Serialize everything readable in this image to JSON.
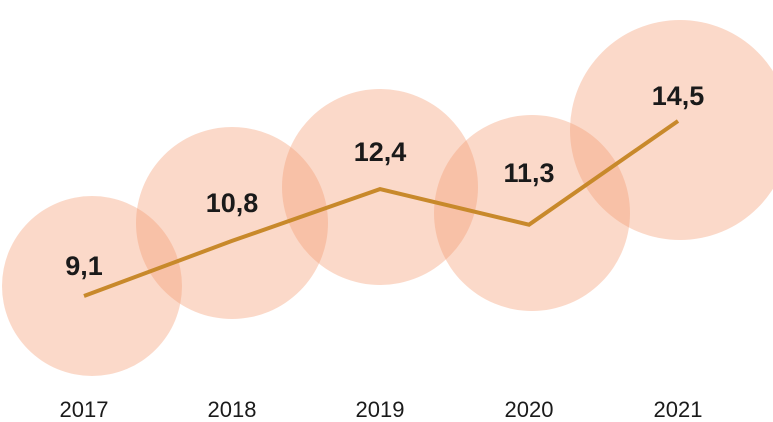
{
  "chart_data": {
    "type": "line",
    "title": "",
    "xlabel": "",
    "ylabel": "",
    "categories": [
      "2017",
      "2018",
      "2019",
      "2020",
      "2021"
    ],
    "values": [
      9.1,
      10.8,
      12.4,
      11.3,
      14.5
    ],
    "value_labels": [
      "9,1",
      "10,8",
      "12,4",
      "11,3",
      "14,5"
    ],
    "grid": false,
    "colors": {
      "line": "#c8892b",
      "bubble": "#f59a70",
      "text": "#1a1a1a"
    }
  }
}
